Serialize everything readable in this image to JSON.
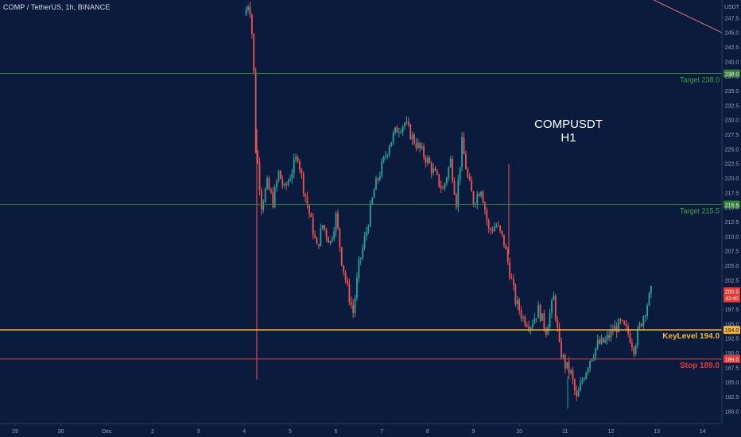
{
  "header": {
    "symbol_title": "COMP / TetherUS, 1h, BINANCE",
    "currency": "USDT"
  },
  "overlay": {
    "line1": "COMPUSDT",
    "line2": "H1"
  },
  "colors": {
    "background": "#0b1b3d",
    "up": "#26a69a",
    "down": "#ef5350",
    "target": "#2e7d32",
    "target_text": "#43a047",
    "keylevel": "#f5b740",
    "stop": "#e53935",
    "axis_text": "#9aa3b3"
  },
  "chart_data": {
    "type": "candlestick",
    "title": "COMP / TetherUS, 1h, BINANCE",
    "ylim": [
      178.5,
      250.5
    ],
    "y_ticks": [
      180.0,
      182.5,
      185.0,
      187.5,
      190.0,
      192.5,
      195.0,
      197.5,
      200.0,
      202.5,
      205.0,
      207.5,
      210.0,
      212.5,
      215.0,
      217.5,
      220.0,
      222.5,
      225.0,
      227.5,
      230.0,
      232.5,
      235.0,
      237.5,
      240.0,
      242.5,
      245.0,
      247.5
    ],
    "x_tick_labels": [
      "29",
      "30",
      "Dec",
      "2",
      "3",
      "4",
      "5",
      "6",
      "7",
      "8",
      "9",
      "10",
      "11",
      "12",
      "13",
      "14"
    ],
    "current_price": "200.5",
    "countdown": "43:40",
    "levels": [
      {
        "label": "Target 238.0",
        "value": 238.0,
        "axis_label": "238.0",
        "kind": "target"
      },
      {
        "label": "Target 215.5",
        "value": 215.5,
        "axis_label": "215.5",
        "kind": "target"
      },
      {
        "label": "KeyLevel 194.0",
        "value": 194.0,
        "axis_label": "194.0",
        "kind": "key"
      },
      {
        "label": "Stop 189.0",
        "value": 189.0,
        "axis_label": "189.0",
        "kind": "stop"
      }
    ],
    "trendline": {
      "from": [
        "Dec 12 20:00",
        251.0
      ],
      "to": [
        "Dec 14 23:00",
        245.0
      ]
    },
    "series_points": [
      [
        "Dec 4 00:00",
        248.0
      ],
      [
        "Dec 4 02:00",
        250.0
      ],
      [
        "Dec 4 03:00",
        249.0
      ],
      [
        "Dec 4 04:00",
        245.0
      ],
      [
        "Dec 4 05:00",
        238.0
      ],
      [
        "Dec 4 06:00",
        225.0
      ],
      [
        "Dec 4 07:00",
        222.5
      ],
      [
        "Dec 4 09:00",
        215.5
      ],
      [
        "Dec 4 12:00",
        219.0
      ],
      [
        "Dec 4 15:00",
        216.0
      ],
      [
        "Dec 4 18:00",
        221.0
      ],
      [
        "Dec 4 21:00",
        218.0
      ],
      [
        "Dec 5 00:00",
        220.5
      ],
      [
        "Dec 5 04:00",
        224.0
      ],
      [
        "Dec 5 07:00",
        218.5
      ],
      [
        "Dec 5 10:00",
        214.0
      ],
      [
        "Dec 5 14:00",
        208.0
      ],
      [
        "Dec 5 17:00",
        212.0
      ],
      [
        "Dec 5 21:00",
        209.0
      ],
      [
        "Dec 6 00:00",
        213.5
      ],
      [
        "Dec 6 03:00",
        206.0
      ],
      [
        "Dec 6 06:00",
        201.0
      ],
      [
        "Dec 6 09:00",
        197.0
      ],
      [
        "Dec 6 12:00",
        205.0
      ],
      [
        "Dec 6 16:00",
        211.0
      ],
      [
        "Dec 6 20:00",
        218.0
      ],
      [
        "Dec 7 00:00",
        222.0
      ],
      [
        "Dec 7 04:00",
        226.0
      ],
      [
        "Dec 7 08:00",
        228.5
      ],
      [
        "Dec 7 12:00",
        229.5
      ],
      [
        "Dec 7 16:00",
        227.0
      ],
      [
        "Dec 7 20:00",
        225.0
      ],
      [
        "Dec 8 00:00",
        223.0
      ],
      [
        "Dec 8 04:00",
        220.5
      ],
      [
        "Dec 8 08:00",
        218.0
      ],
      [
        "Dec 8 12:00",
        223.0
      ],
      [
        "Dec 8 15:00",
        216.0
      ],
      [
        "Dec 8 18:00",
        226.0
      ],
      [
        "Dec 8 21:00",
        220.0
      ],
      [
        "Dec 9 00:00",
        216.0
      ],
      [
        "Dec 9 04:00",
        218.5
      ],
      [
        "Dec 9 08:00",
        211.0
      ],
      [
        "Dec 9 12:00",
        212.0
      ],
      [
        "Dec 9 16:00",
        209.0
      ],
      [
        "Dec 9 19:00",
        204.0
      ],
      [
        "Dec 9 22:00",
        199.0
      ],
      [
        "Dec 10 02:00",
        196.0
      ],
      [
        "Dec 10 06:00",
        195.0
      ],
      [
        "Dec 10 10:00",
        197.5
      ],
      [
        "Dec 10 14:00",
        194.0
      ],
      [
        "Dec 10 18:00",
        199.5
      ],
      [
        "Dec 10 21:00",
        191.0
      ],
      [
        "Dec 11 00:00",
        188.0
      ],
      [
        "Dec 11 03:00",
        186.5
      ],
      [
        "Dec 11 06:00",
        182.0
      ],
      [
        "Dec 11 09:00",
        185.5
      ],
      [
        "Dec 11 13:00",
        189.0
      ],
      [
        "Dec 11 17:00",
        191.5
      ],
      [
        "Dec 11 21:00",
        192.0
      ],
      [
        "Dec 12 01:00",
        194.0
      ],
      [
        "Dec 12 05:00",
        195.0
      ],
      [
        "Dec 12 09:00",
        193.5
      ],
      [
        "Dec 12 12:00",
        191.0
      ],
      [
        "Dec 12 15:00",
        194.5
      ],
      [
        "Dec 12 18:00",
        197.5
      ],
      [
        "Dec 12 21:00",
        200.5
      ]
    ]
  }
}
